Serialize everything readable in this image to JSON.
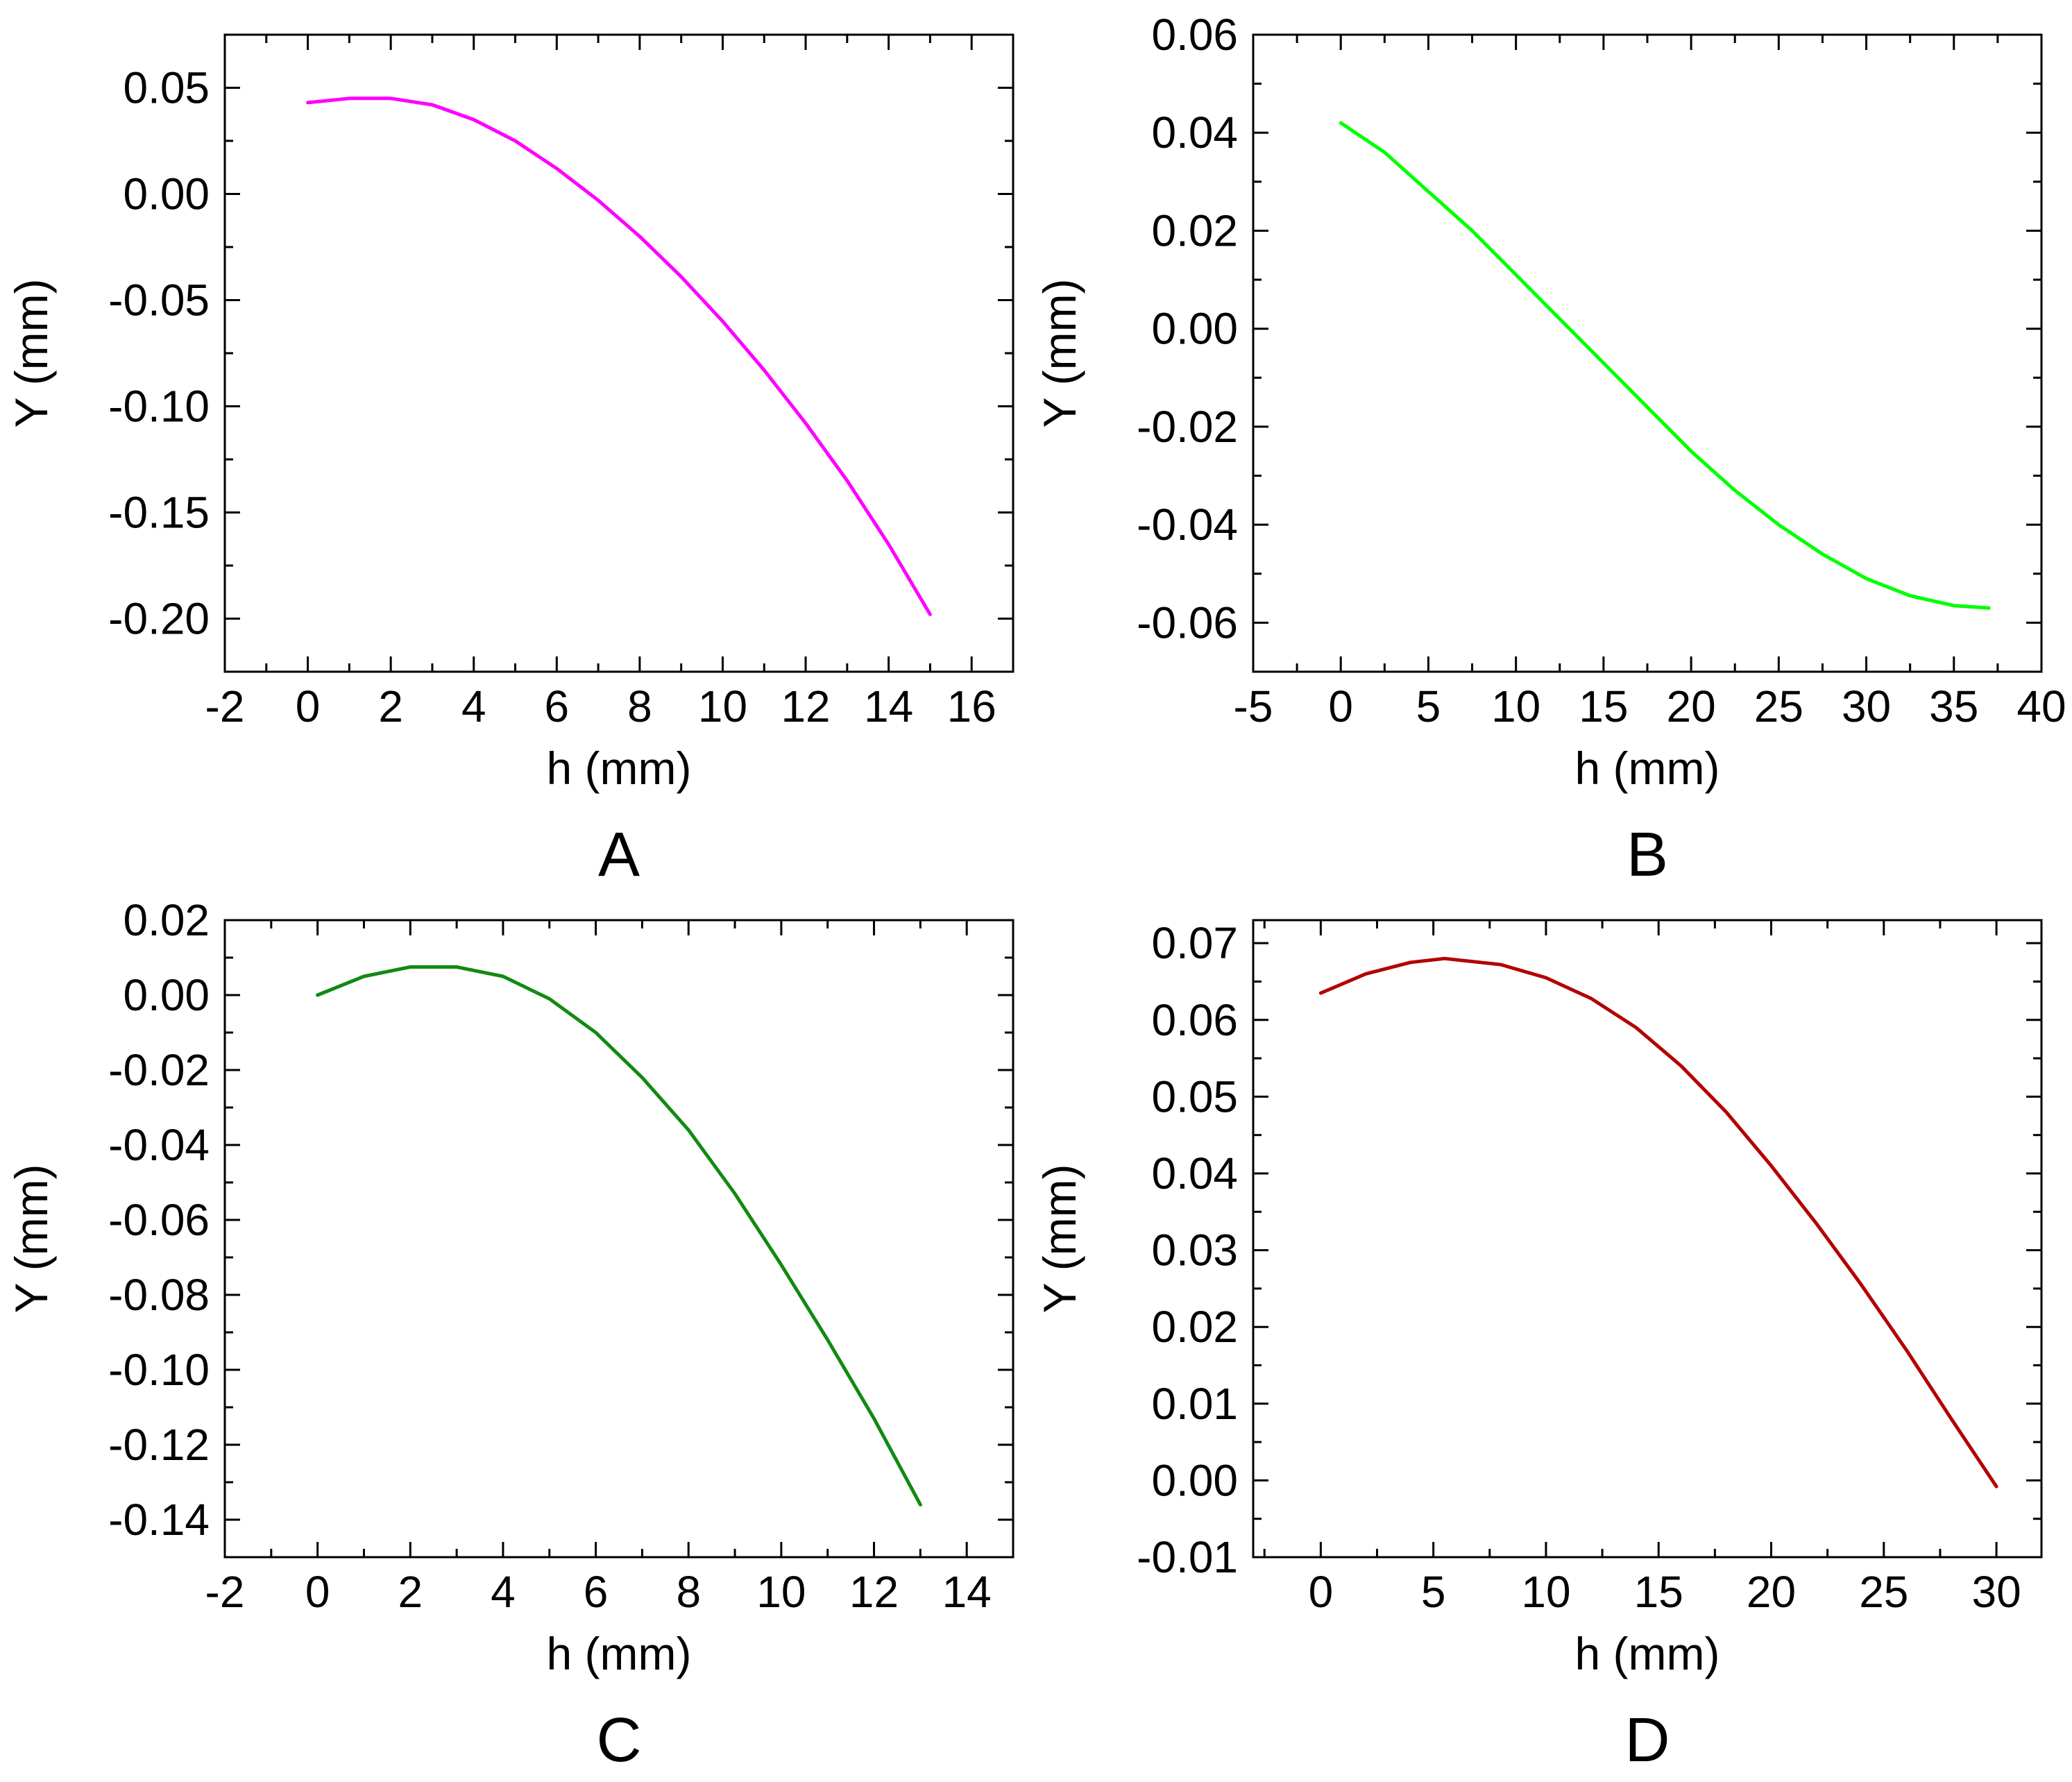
{
  "chart_data": [
    {
      "type": "line",
      "panel_label": "A",
      "xlabel": "h (mm)",
      "ylabel": "Y (mm)",
      "xlim": [
        -2,
        17
      ],
      "ylim": [
        -0.225,
        0.075
      ],
      "xticks": [
        -2,
        0,
        2,
        4,
        6,
        8,
        10,
        12,
        14,
        16
      ],
      "xtick_labels": [
        "-2",
        "0",
        "2",
        "4",
        "6",
        "8",
        "10",
        "12",
        "14",
        "16"
      ],
      "yticks": [
        0.05,
        0.0,
        -0.05,
        -0.1,
        -0.15,
        -0.2
      ],
      "ytick_labels": [
        "0.05",
        "0.00",
        "-0.05",
        "-0.10",
        "-0.15",
        "-0.20"
      ],
      "series": [
        {
          "name": "A",
          "color": "#ff00ff",
          "x": [
            0,
            1,
            2,
            3,
            4,
            5,
            6,
            7,
            8,
            9,
            10,
            11,
            12,
            13,
            14,
            15
          ],
          "y": [
            0.043,
            0.045,
            0.045,
            0.042,
            0.035,
            0.025,
            0.012,
            -0.003,
            -0.02,
            -0.039,
            -0.06,
            -0.083,
            -0.108,
            -0.135,
            -0.165,
            -0.198
          ]
        }
      ]
    },
    {
      "type": "line",
      "panel_label": "B",
      "xlabel": "h (mm)",
      "ylabel": "Y (mm)",
      "xlim": [
        -5,
        40
      ],
      "ylim": [
        -0.07,
        0.06
      ],
      "xticks": [
        -5,
        0,
        5,
        10,
        15,
        20,
        25,
        30,
        35,
        40
      ],
      "xtick_labels": [
        "-5",
        "0",
        "5",
        "10",
        "15",
        "20",
        "25",
        "30",
        "35",
        "40"
      ],
      "yticks": [
        0.06,
        0.04,
        0.02,
        0.0,
        -0.02,
        -0.04,
        -0.06
      ],
      "ytick_labels": [
        "0.06",
        "0.04",
        "0.02",
        "0.00",
        "-0.02",
        "-0.04",
        "-0.06"
      ],
      "series": [
        {
          "name": "B",
          "color": "#00ff00",
          "x": [
            0,
            2.5,
            5,
            7.5,
            10,
            12.5,
            15,
            17.5,
            20,
            22.5,
            25,
            27.5,
            30,
            32.5,
            35,
            37
          ],
          "y": [
            0.042,
            0.036,
            0.028,
            0.02,
            0.011,
            0.002,
            -0.007,
            -0.016,
            -0.025,
            -0.033,
            -0.04,
            -0.046,
            -0.051,
            -0.0545,
            -0.0565,
            -0.057
          ]
        }
      ]
    },
    {
      "type": "line",
      "panel_label": "C",
      "xlabel": "h (mm)",
      "ylabel": "Y (mm)",
      "xlim": [
        -2,
        15
      ],
      "ylim": [
        -0.15,
        0.02
      ],
      "xticks": [
        -2,
        0,
        2,
        4,
        6,
        8,
        10,
        12,
        14
      ],
      "xtick_labels": [
        "-2",
        "0",
        "2",
        "4",
        "6",
        "8",
        "10",
        "12",
        "14"
      ],
      "yticks": [
        0.02,
        0.0,
        -0.02,
        -0.04,
        -0.06,
        -0.08,
        -0.1,
        -0.12,
        -0.14
      ],
      "ytick_labels": [
        "0.02",
        "0.00",
        "-0.02",
        "-0.04",
        "-0.06",
        "-0.08",
        "-0.10",
        "-0.12",
        "-0.14"
      ],
      "series": [
        {
          "name": "C",
          "color": "#118a11",
          "x": [
            0,
            1,
            2,
            3,
            4,
            5,
            6,
            7,
            8,
            9,
            10,
            11,
            12,
            13
          ],
          "y": [
            0.0,
            0.005,
            0.0075,
            0.0075,
            0.005,
            -0.001,
            -0.01,
            -0.022,
            -0.036,
            -0.053,
            -0.072,
            -0.092,
            -0.113,
            -0.136
          ]
        }
      ]
    },
    {
      "type": "line",
      "panel_label": "D",
      "xlabel": "h (mm)",
      "ylabel": "Y (mm)",
      "xlim": [
        -3,
        32
      ],
      "ylim": [
        -0.01,
        0.073
      ],
      "xticks": [
        0,
        5,
        10,
        15,
        20,
        25,
        30
      ],
      "xtick_labels": [
        "0",
        "5",
        "10",
        "15",
        "20",
        "25",
        "30"
      ],
      "yticks": [
        0.07,
        0.06,
        0.05,
        0.04,
        0.03,
        0.02,
        0.01,
        0.0,
        -0.01
      ],
      "ytick_labels": [
        "0.07",
        "0.06",
        "0.05",
        "0.04",
        "0.03",
        "0.02",
        "0.01",
        "0.00",
        "-0.01"
      ],
      "series": [
        {
          "name": "D",
          "color": "#b30000",
          "x": [
            0,
            2,
            4,
            5.5,
            8,
            10,
            12,
            14,
            16,
            18,
            20,
            22,
            24,
            26,
            28,
            30
          ],
          "y": [
            0.0635,
            0.066,
            0.0675,
            0.068,
            0.0672,
            0.0655,
            0.0628,
            0.059,
            0.054,
            0.048,
            0.041,
            0.0335,
            0.0255,
            0.017,
            0.008,
            -0.0008
          ]
        }
      ]
    }
  ]
}
